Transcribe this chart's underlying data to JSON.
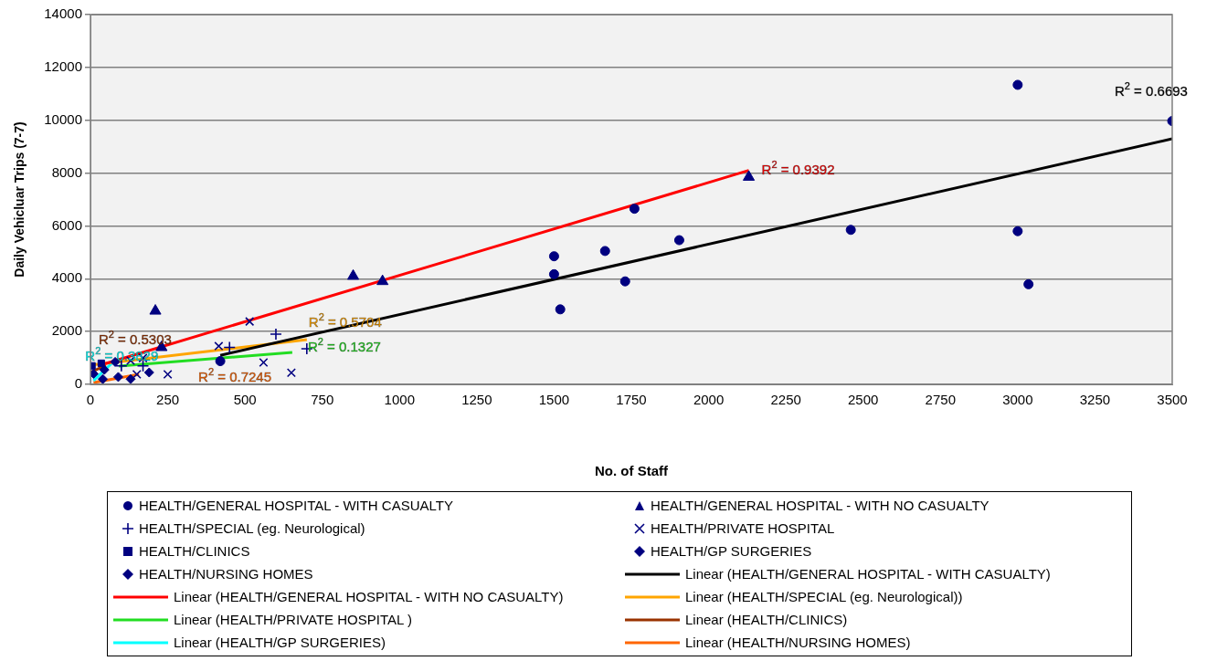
{
  "chart_data": {
    "type": "scatter",
    "xlabel": "No. of Staff",
    "ylabel": "Daily Vehicluar Trips (7-7)",
    "xlim": [
      0,
      3500
    ],
    "xticks": [
      0,
      250,
      500,
      750,
      1000,
      1250,
      1500,
      1750,
      2000,
      2250,
      2500,
      2750,
      3000,
      3250,
      3500
    ],
    "ylim": [
      0,
      14000
    ],
    "yticks": [
      0,
      2000,
      4000,
      6000,
      8000,
      10000,
      12000,
      14000
    ],
    "grid": "y",
    "legend": "bottom",
    "series": [
      {
        "name": "HEALTH/GENERAL HOSPITAL - WITH CASUALTY",
        "color": "#000080",
        "marker": "circle",
        "x": [
          420,
          1500,
          1500,
          1520,
          1665,
          1730,
          1760,
          1905,
          2460,
          3000,
          3000,
          3035,
          3500
        ],
        "values": [
          880,
          4850,
          4170,
          2840,
          5050,
          3900,
          6650,
          5460,
          5850,
          11340,
          5800,
          3790,
          9970
        ]
      },
      {
        "name": "HEALTH/GENERAL HOSPITAL - WITH NO CASUALTY",
        "color": "#000080",
        "marker": "triangle",
        "x": [
          210,
          230,
          850,
          945,
          2130
        ],
        "values": [
          2780,
          1400,
          4100,
          3900,
          7850
        ]
      },
      {
        "name": "HEALTH/SPECIAL (eg. Neurological)",
        "color": "#000080",
        "marker": "cross",
        "x": [
          100,
          170,
          450,
          600,
          700
        ],
        "values": [
          700,
          700,
          1400,
          1900,
          1350
        ]
      },
      {
        "name": "HEALTH/PRIVATE HOSPITAL",
        "color": "#000080",
        "marker": "x",
        "x": [
          130,
          150,
          170,
          250,
          415,
          515,
          560,
          650
        ],
        "values": [
          900,
          380,
          1000,
          380,
          1450,
          2380,
          830,
          440
        ]
      },
      {
        "name": "HEALTH/CLINICS",
        "color": "#000080",
        "marker": "square",
        "x": [
          5,
          35
        ],
        "values": [
          700,
          800
        ]
      },
      {
        "name": "HEALTH/GP SURGERIES",
        "color": "#000080",
        "marker": "diamond",
        "x": [
          10,
          45,
          80
        ],
        "values": [
          400,
          550,
          850
        ]
      },
      {
        "name": "HEALTH/NURSING HOMES",
        "color": "#000080",
        "marker": "diamond",
        "x": [
          40,
          90,
          130,
          190
        ],
        "values": [
          200,
          280,
          200,
          450
        ]
      },
      {
        "name": "Linear (HEALTH/GENERAL HOSPITAL - WITH CASUALTY)",
        "type": "line",
        "color": "#000000",
        "x": [
          420,
          3500
        ],
        "values": [
          1100,
          9300
        ]
      },
      {
        "name": "Linear (HEALTH/GENERAL HOSPITAL - WITH NO CASUALTY)",
        "type": "line",
        "color": "#ff0000",
        "x": [
          24,
          2130
        ],
        "values": [
          700,
          8100
        ]
      },
      {
        "name": "Linear (HEALTH/SPECIAL (eg. Neurological))",
        "type": "line",
        "color": "#ffa500",
        "x": [
          10,
          700
        ],
        "values": [
          740,
          1690
        ]
      },
      {
        "name": "Linear (HEALTH/PRIVATE HOSPITAL )",
        "type": "line",
        "color": "#22dd22",
        "x": [
          92,
          653
        ],
        "values": [
          690,
          1210
        ]
      },
      {
        "name": "Linear (HEALTH/CLINICS)",
        "type": "line",
        "color": "#993300",
        "x": [
          0,
          50
        ],
        "values": [
          450,
          720
        ]
      },
      {
        "name": "Linear (HEALTH/GP SURGERIES)",
        "type": "line",
        "color": "#00ffff",
        "x": [
          10,
          72
        ],
        "values": [
          140,
          830
        ]
      },
      {
        "name": "Linear (HEALTH/NURSING HOMES)",
        "type": "line",
        "color": "#ff6600",
        "x": [
          10,
          157
        ],
        "values": [
          70,
          380
        ]
      }
    ],
    "annotations": [
      "R$^{2}$ = 0.6693",
      "R$^{2}$ = 0.9392",
      "R$^{2}$ = 0.5704",
      "R$^{2}$ = 0.1327",
      "R$^{2}$ = 0.5303",
      "R$^{2}$ = 0.3829",
      "R$^{2}$ = 0.7245"
    ]
  }
}
